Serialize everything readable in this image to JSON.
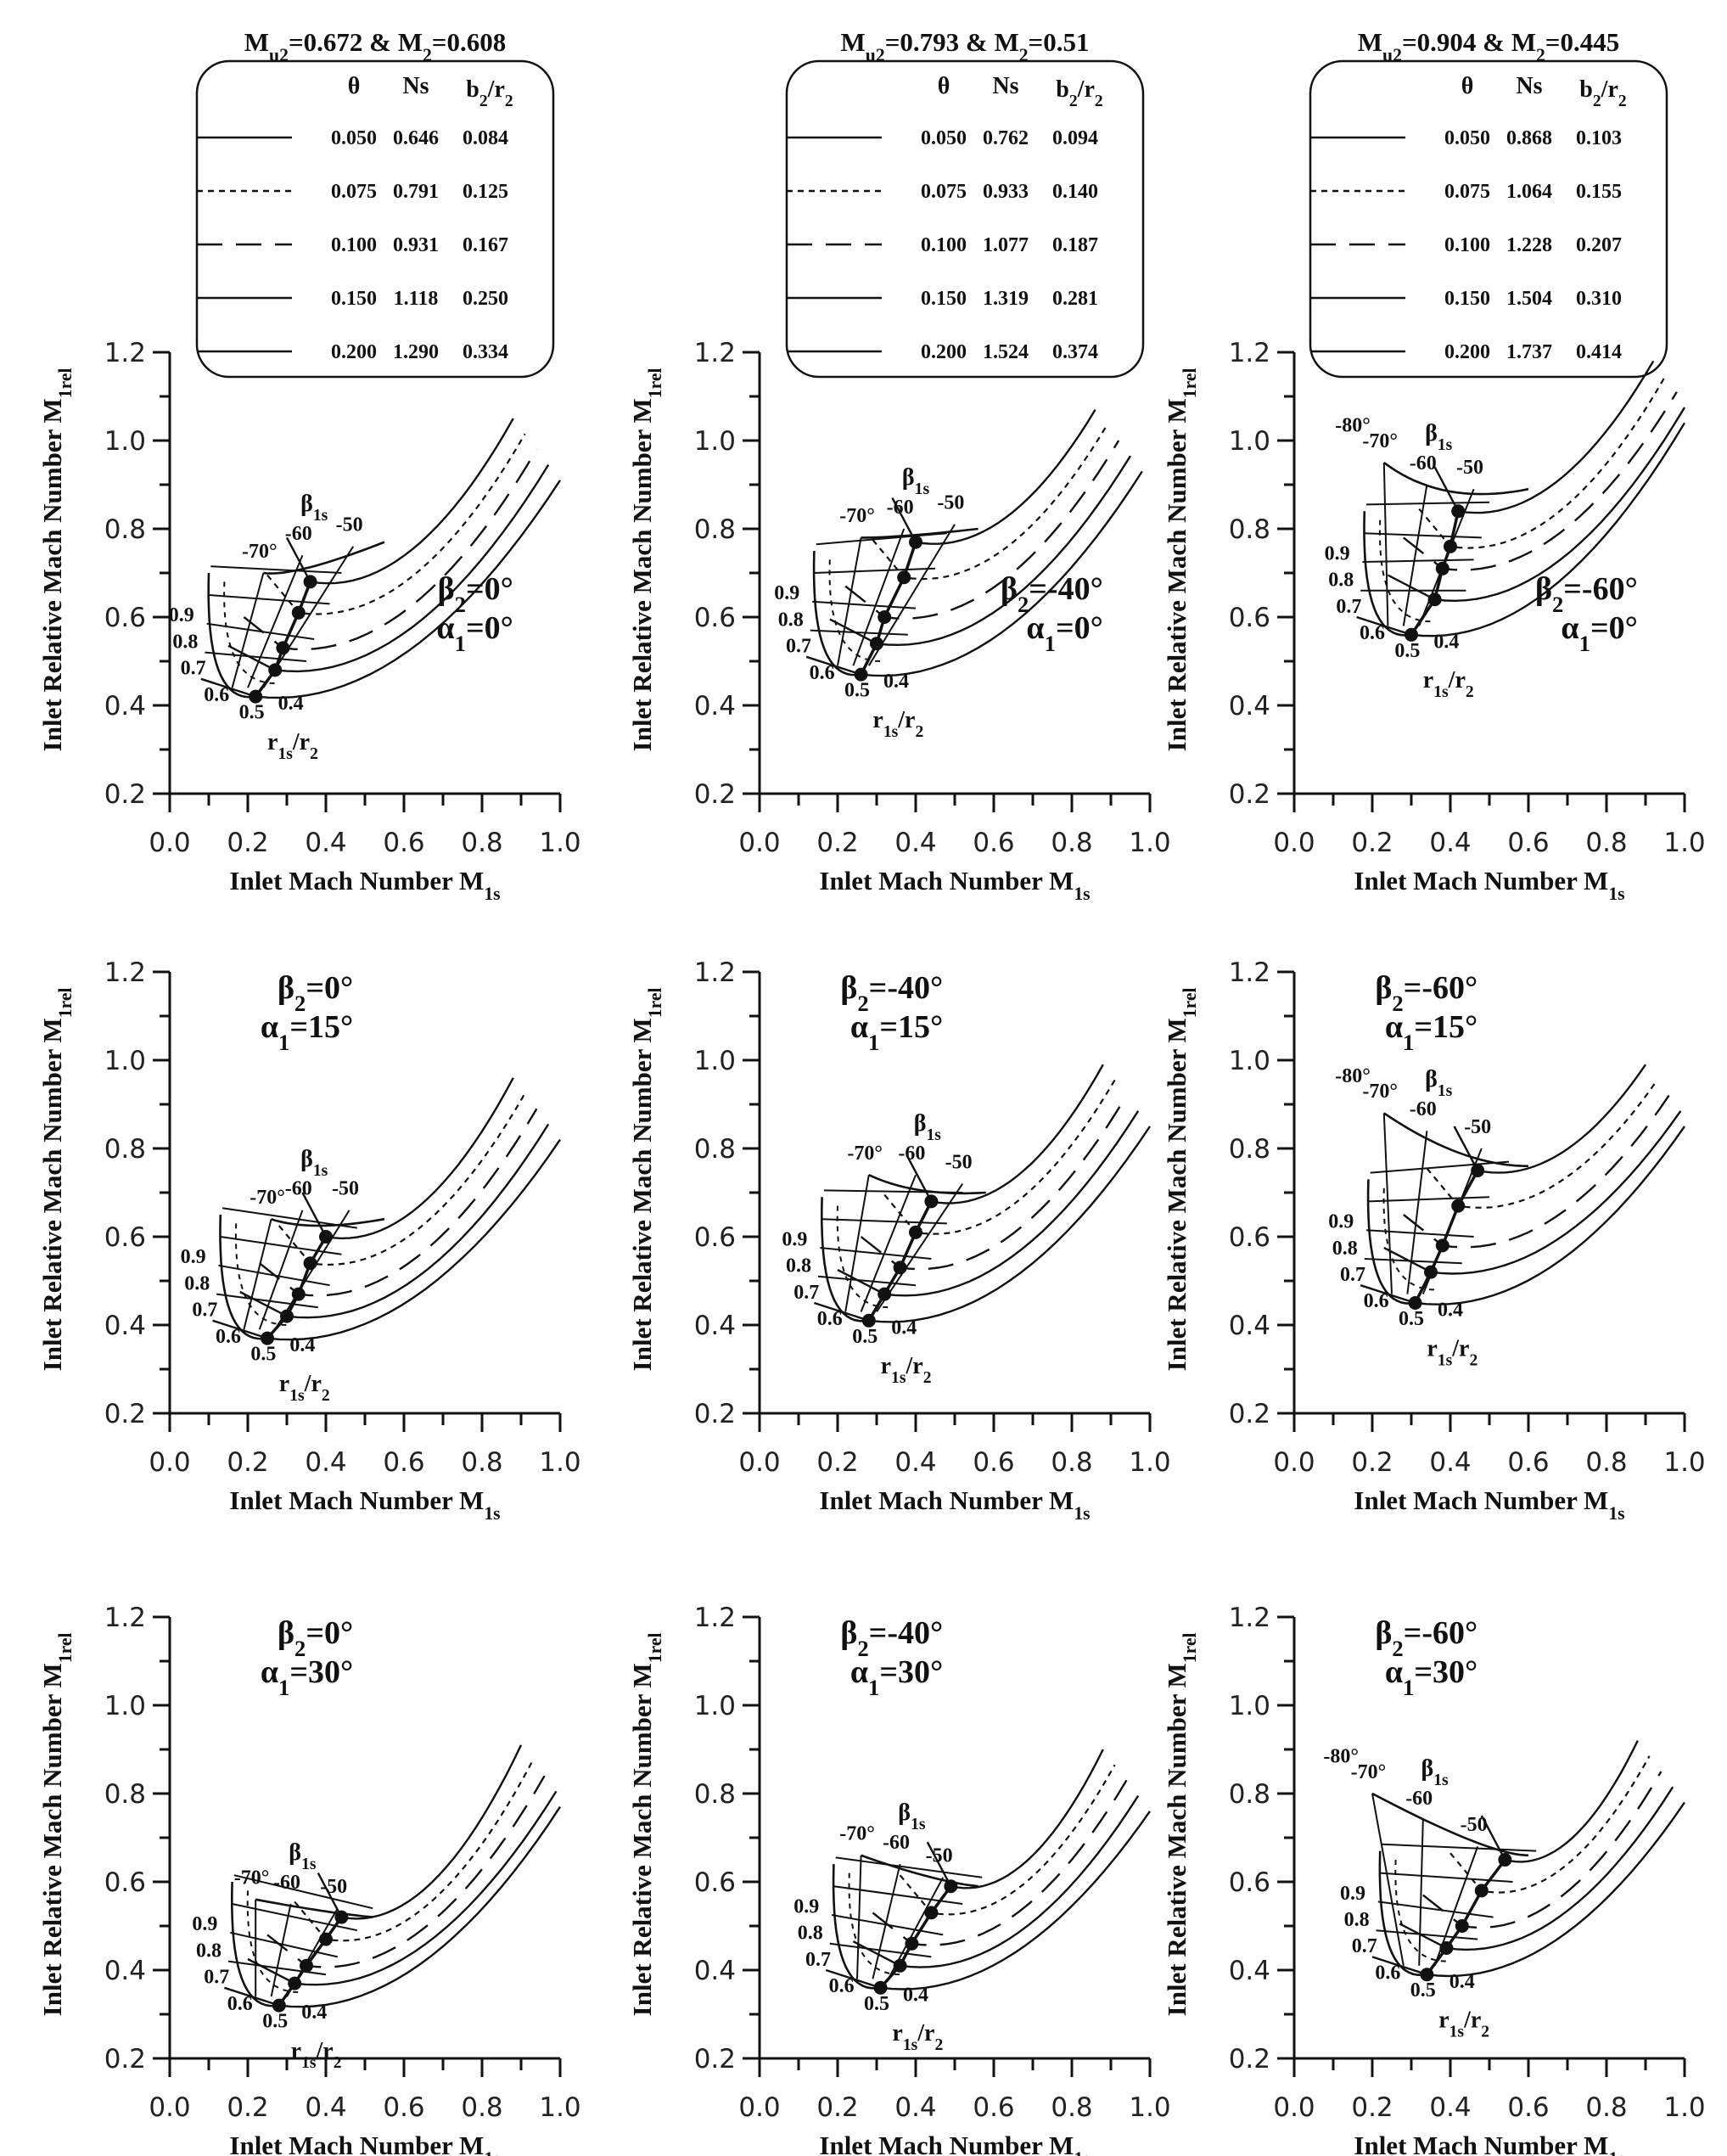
{
  "chart_data": {
    "type": "line",
    "layout": "3x3 grid",
    "shared": {
      "xlabel": "Inlet Mach Number M1s",
      "ylabel": "Inlet Relative Mach Number M1rel",
      "xlim": [
        0.0,
        1.0
      ],
      "ylim": [
        0.2,
        1.2
      ],
      "xticks": [
        "0.0",
        "0.2",
        "0.4",
        "0.6",
        "0.8",
        "1.0"
      ],
      "yticks": [
        "0.2",
        "0.4",
        "0.6",
        "0.8",
        "1.0",
        "1.2"
      ],
      "beta_label": "β1s",
      "ratio_label": "r1s/r2",
      "r_labels": [
        "0.9",
        "0.8",
        "0.7",
        "0.6",
        "0.5",
        "0.4"
      ],
      "beta_angles": [
        "-70",
        "-60",
        "-50"
      ]
    },
    "legends": [
      {
        "header": "Mu2=0.672 & M2=0.608",
        "columns": [
          "θ",
          "Ns",
          "b2/r2"
        ],
        "rows": [
          {
            "style": "solid",
            "theta": "0.050",
            "ns": "0.646",
            "b2r2": "0.084"
          },
          {
            "style": "dotted",
            "theta": "0.075",
            "ns": "0.791",
            "b2r2": "0.125"
          },
          {
            "style": "long-dash",
            "theta": "0.100",
            "ns": "0.931",
            "b2r2": "0.167"
          },
          {
            "style": "solid",
            "theta": "0.150",
            "ns": "1.118",
            "b2r2": "0.250"
          },
          {
            "style": "solid",
            "theta": "0.200",
            "ns": "1.290",
            "b2r2": "0.334"
          }
        ]
      },
      {
        "header": "Mu2=0.793 & M2=0.51",
        "columns": [
          "θ",
          "Ns",
          "b2/r2"
        ],
        "rows": [
          {
            "style": "solid",
            "theta": "0.050",
            "ns": "0.762",
            "b2r2": "0.094"
          },
          {
            "style": "dotted",
            "theta": "0.075",
            "ns": "0.933",
            "b2r2": "0.140"
          },
          {
            "style": "long-dash",
            "theta": "0.100",
            "ns": "1.077",
            "b2r2": "0.187"
          },
          {
            "style": "solid",
            "theta": "0.150",
            "ns": "1.319",
            "b2r2": "0.281"
          },
          {
            "style": "solid",
            "theta": "0.200",
            "ns": "1.524",
            "b2r2": "0.374"
          }
        ]
      },
      {
        "header": "Mu2=0.904 & M2=0.445",
        "columns": [
          "θ",
          "Ns",
          "b2/r2"
        ],
        "rows": [
          {
            "style": "solid",
            "theta": "0.050",
            "ns": "0.868",
            "b2r2": "0.103"
          },
          {
            "style": "dotted",
            "theta": "0.075",
            "ns": "1.064",
            "b2r2": "0.155"
          },
          {
            "style": "long-dash",
            "theta": "0.100",
            "ns": "1.228",
            "b2r2": "0.207"
          },
          {
            "style": "solid",
            "theta": "0.150",
            "ns": "1.504",
            "b2r2": "0.310"
          },
          {
            "style": "solid",
            "theta": "0.200",
            "ns": "1.737",
            "b2r2": "0.414"
          }
        ]
      }
    ],
    "panels": [
      {
        "id": "r0c0",
        "beta2": "0",
        "alpha1": "0",
        "extra_beta": "",
        "label_beta": "β2=0°",
        "label_alpha": "α1=0°",
        "vertex": [
          0.22,
          0.42
        ],
        "rest": [
          0.88,
          0.99
        ],
        "dots": [
          [
            0.22,
            0.42
          ],
          [
            0.27,
            0.48
          ],
          [
            0.29,
            0.53
          ],
          [
            0.33,
            0.61
          ],
          [
            0.36,
            0.68
          ]
        ],
        "betaEnds": [
          [
            0.24,
            0.7
          ],
          [
            0.34,
            0.74
          ],
          [
            0.47,
            0.76
          ]
        ],
        "upper_end": [
          0.55,
          0.77
        ]
      },
      {
        "id": "r0c1",
        "beta2": "-40",
        "alpha1": "0",
        "extra_beta": "",
        "label_beta": "β2=-40°",
        "label_alpha": "α1=0°",
        "vertex": [
          0.26,
          0.47
        ],
        "rest": [
          0.86,
          1.01
        ],
        "dots": [
          [
            0.26,
            0.47
          ],
          [
            0.3,
            0.54
          ],
          [
            0.32,
            0.6
          ],
          [
            0.37,
            0.69
          ],
          [
            0.4,
            0.77
          ]
        ],
        "betaEnds": [
          [
            0.26,
            0.78
          ],
          [
            0.37,
            0.8
          ],
          [
            0.5,
            0.81
          ]
        ],
        "upper_end": [
          0.56,
          0.8
        ]
      },
      {
        "id": "r0c2",
        "beta2": "-60",
        "alpha1": "0",
        "extra_beta": "-80",
        "label_beta": "β2=-60°",
        "label_alpha": "α1=0°",
        "vertex": [
          0.3,
          0.56
        ],
        "rest": [
          0.92,
          1.12
        ],
        "dots": [
          [
            0.3,
            0.56
          ],
          [
            0.36,
            0.64
          ],
          [
            0.38,
            0.71
          ],
          [
            0.4,
            0.76
          ],
          [
            0.42,
            0.84
          ]
        ],
        "betaEnds": [
          [
            0.23,
            0.95
          ],
          [
            0.34,
            0.9
          ],
          [
            0.46,
            0.89
          ]
        ],
        "upper_end": [
          0.6,
          0.89
        ]
      },
      {
        "id": "r1c0",
        "beta2": "0",
        "alpha1": "15",
        "extra_beta": "",
        "label_beta": "β2=0°",
        "label_alpha": "α1=15°",
        "vertex": [
          0.25,
          0.37
        ],
        "rest": [
          0.88,
          0.9
        ],
        "dots": [
          [
            0.25,
            0.37
          ],
          [
            0.3,
            0.42
          ],
          [
            0.33,
            0.47
          ],
          [
            0.36,
            0.54
          ],
          [
            0.4,
            0.6
          ]
        ],
        "betaEnds": [
          [
            0.26,
            0.64
          ],
          [
            0.34,
            0.66
          ],
          [
            0.46,
            0.66
          ]
        ],
        "upper_end": [
          0.55,
          0.64
        ]
      },
      {
        "id": "r1c1",
        "beta2": "-40",
        "alpha1": "15",
        "extra_beta": "",
        "label_beta": "β2=-40°",
        "label_alpha": "α1=15°",
        "vertex": [
          0.28,
          0.41
        ],
        "rest": [
          0.88,
          0.93
        ],
        "dots": [
          [
            0.28,
            0.41
          ],
          [
            0.32,
            0.47
          ],
          [
            0.36,
            0.53
          ],
          [
            0.4,
            0.61
          ],
          [
            0.44,
            0.68
          ]
        ],
        "betaEnds": [
          [
            0.28,
            0.74
          ],
          [
            0.4,
            0.74
          ],
          [
            0.52,
            0.72
          ]
        ],
        "upper_end": [
          0.58,
          0.7
        ]
      },
      {
        "id": "r1c2",
        "beta2": "-60",
        "alpha1": "15",
        "extra_beta": "-80",
        "label_beta": "β2=-60°",
        "label_alpha": "α1=15°",
        "vertex": [
          0.31,
          0.45
        ],
        "rest": [
          0.9,
          0.93
        ],
        "dots": [
          [
            0.31,
            0.45
          ],
          [
            0.35,
            0.52
          ],
          [
            0.38,
            0.58
          ],
          [
            0.42,
            0.67
          ],
          [
            0.47,
            0.75
          ]
        ],
        "betaEnds": [
          [
            0.23,
            0.88
          ],
          [
            0.34,
            0.84
          ],
          [
            0.48,
            0.8
          ]
        ],
        "upper_end": [
          0.6,
          0.76
        ]
      },
      {
        "id": "r2c0",
        "beta2": "0",
        "alpha1": "30",
        "extra_beta": "",
        "label_beta": "β2=0°",
        "label_alpha": "α1=30°",
        "vertex": [
          0.28,
          0.32
        ],
        "rest": [
          0.9,
          0.85
        ],
        "dots": [
          [
            0.28,
            0.32
          ],
          [
            0.32,
            0.37
          ],
          [
            0.35,
            0.41
          ],
          [
            0.4,
            0.47
          ],
          [
            0.44,
            0.52
          ]
        ],
        "betaEnds": [
          [
            0.22,
            0.56
          ],
          [
            0.31,
            0.55
          ],
          [
            0.43,
            0.54
          ]
        ],
        "upper_end": [
          0.52,
          0.52
        ]
      },
      {
        "id": "r2c1",
        "beta2": "-40",
        "alpha1": "30",
        "extra_beta": "",
        "label_beta": "β2=-40°",
        "label_alpha": "α1=30°",
        "vertex": [
          0.31,
          0.36
        ],
        "rest": [
          0.88,
          0.84
        ],
        "dots": [
          [
            0.31,
            0.36
          ],
          [
            0.36,
            0.41
          ],
          [
            0.39,
            0.46
          ],
          [
            0.44,
            0.53
          ],
          [
            0.49,
            0.59
          ]
        ],
        "betaEnds": [
          [
            0.26,
            0.66
          ],
          [
            0.36,
            0.64
          ],
          [
            0.47,
            0.61
          ]
        ],
        "upper_end": [
          0.56,
          0.59
        ]
      },
      {
        "id": "r2c2",
        "beta2": "-60",
        "alpha1": "30",
        "extra_beta": "-80",
        "label_beta": "β2=-60°",
        "label_alpha": "α1=30°",
        "vertex": [
          0.34,
          0.39
        ],
        "rest": [
          0.88,
          0.86
        ],
        "dots": [
          [
            0.34,
            0.39
          ],
          [
            0.39,
            0.45
          ],
          [
            0.43,
            0.5
          ],
          [
            0.48,
            0.58
          ],
          [
            0.54,
            0.65
          ]
        ],
        "betaEnds": [
          [
            0.2,
            0.8
          ],
          [
            0.33,
            0.74
          ],
          [
            0.47,
            0.68
          ]
        ],
        "upper_end": [
          0.6,
          0.66
        ]
      }
    ]
  }
}
